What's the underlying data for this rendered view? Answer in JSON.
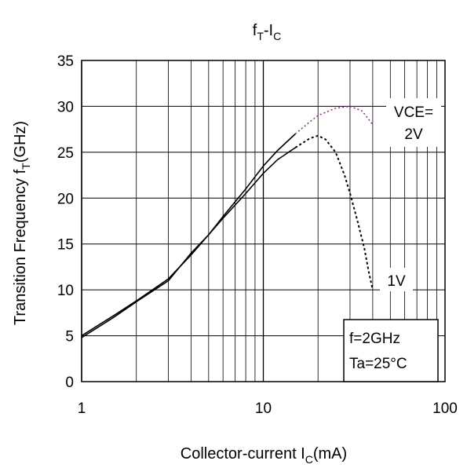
{
  "chart_data": {
    "type": "line",
    "title": {
      "main": "f",
      "sub1": "T",
      "mid": "-I",
      "sub2": "C"
    },
    "xlabel": {
      "pre": "Collector-current I",
      "sub": "C",
      "post": "(mA)"
    },
    "ylabel": {
      "pre": "Transition Frequency f",
      "sub": "T",
      "post": "(GHz)"
    },
    "x_scale": "log",
    "xlim": [
      1,
      100
    ],
    "ylim": [
      0,
      35
    ],
    "x_ticks": [
      1,
      10,
      100
    ],
    "x_tick_labels": [
      "1",
      "10",
      "100"
    ],
    "y_ticks": [
      0,
      5,
      10,
      15,
      20,
      25,
      30,
      35
    ],
    "y_tick_labels": [
      "0",
      "5",
      "10",
      "15",
      "20",
      "25",
      "30",
      "35"
    ],
    "grid": true,
    "series": [
      {
        "name": "VCE=2V",
        "color": "#000000",
        "dash_color": "#8b1a8b",
        "solid": {
          "x": [
            1,
            1.5,
            2,
            3,
            4,
            5,
            6,
            8,
            10,
            12,
            15
          ],
          "y": [
            5.0,
            7.2,
            8.8,
            11.2,
            13.8,
            16.0,
            18.0,
            21.0,
            23.5,
            25.2,
            27.0
          ]
        },
        "dashed": {
          "x": [
            15,
            18,
            20,
            25,
            30,
            35,
            40
          ],
          "y": [
            27.0,
            28.3,
            29.0,
            29.8,
            30.0,
            29.5,
            28.0
          ]
        }
      },
      {
        "name": "1V",
        "color": "#000000",
        "dash_color": "#000000",
        "solid": {
          "x": [
            1,
            1.5,
            2,
            3,
            4,
            5,
            6,
            8,
            10,
            12,
            15
          ],
          "y": [
            4.8,
            7.0,
            8.7,
            11.0,
            14.0,
            16.0,
            17.8,
            20.5,
            22.7,
            24.2,
            25.5
          ]
        },
        "dashed": {
          "x": [
            15,
            18,
            20,
            22,
            25,
            28,
            30,
            33,
            36,
            38,
            40
          ],
          "y": [
            25.5,
            26.5,
            26.8,
            26.4,
            25.0,
            22.5,
            20.5,
            17.5,
            14.5,
            12.0,
            10.0
          ]
        }
      }
    ],
    "annotations": {
      "vce_line1": "VCE=",
      "vce_line2": "2V",
      "v1": "1V",
      "cond_line1": "f=2GHz",
      "cond_line2": "Ta=25°C"
    }
  }
}
